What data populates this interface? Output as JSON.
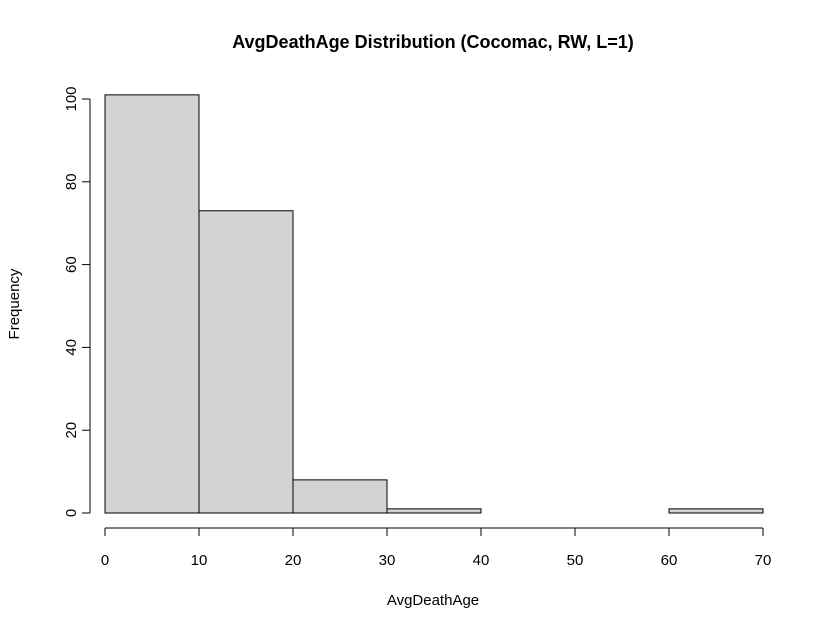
{
  "chart_data": {
    "type": "bar",
    "title": "AvgDeathAge Distribution (Cocomac, RW, L=1)",
    "xlabel": "AvgDeathAge",
    "ylabel": "Frequency",
    "bins": [
      {
        "from": 0,
        "to": 10,
        "count": 101
      },
      {
        "from": 10,
        "to": 20,
        "count": 73
      },
      {
        "from": 20,
        "to": 30,
        "count": 8
      },
      {
        "from": 30,
        "to": 40,
        "count": 1
      },
      {
        "from": 40,
        "to": 50,
        "count": 0
      },
      {
        "from": 50,
        "to": 60,
        "count": 0
      },
      {
        "from": 60,
        "to": 70,
        "count": 1
      }
    ],
    "xlim": [
      0,
      70
    ],
    "ylim": [
      0,
      100
    ],
    "x_ticks": [
      "0",
      "10",
      "20",
      "30",
      "40",
      "50",
      "60",
      "70"
    ],
    "y_ticks": [
      "0",
      "20",
      "40",
      "60",
      "80",
      "100"
    ],
    "grid": false,
    "legend": "none",
    "bar_color": "#d3d3d3",
    "edge_color": "#000000"
  }
}
